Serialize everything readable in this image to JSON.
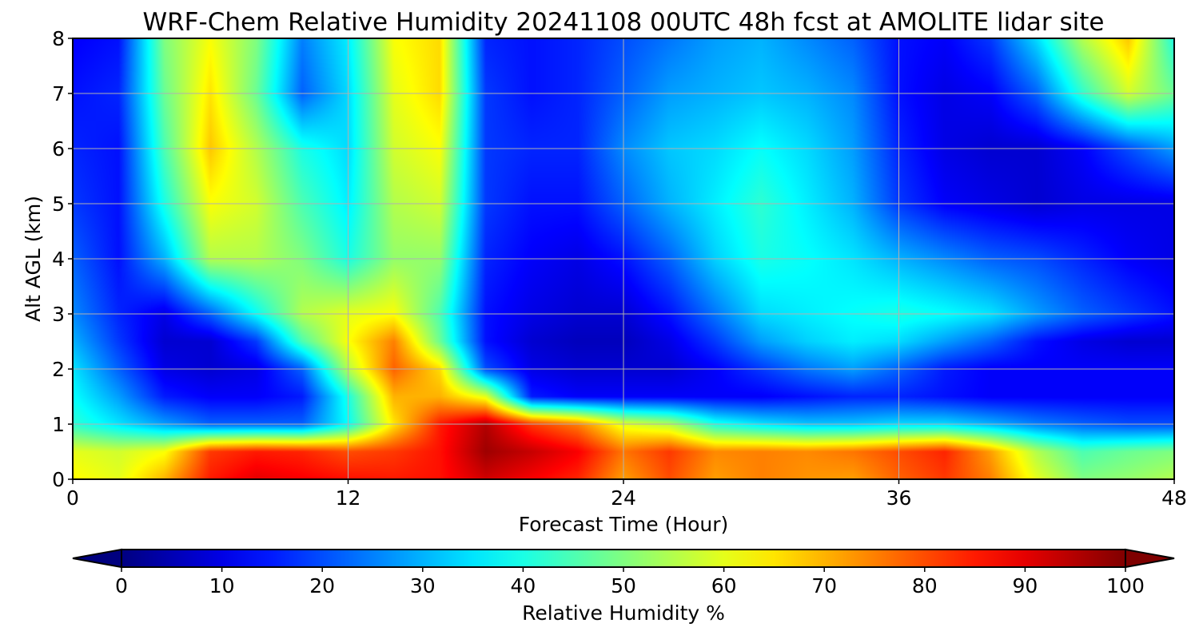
{
  "chart_data": {
    "type": "heatmap",
    "title": "WRF-Chem Relative Humidity 20241108 00UTC 48h fcst at AMOLITE lidar site",
    "xlabel": "Forecast Time (Hour)",
    "ylabel": "Alt AGL (km)",
    "xlim": [
      0,
      48
    ],
    "ylim": [
      0,
      8
    ],
    "x_ticks": [
      "0",
      "12",
      "24",
      "36",
      "48"
    ],
    "y_ticks": [
      "0",
      "1",
      "2",
      "3",
      "4",
      "5",
      "6",
      "7",
      "8"
    ],
    "grid": true,
    "colorbar": {
      "label": "Relative Humidity %",
      "range": [
        0,
        100
      ],
      "ticks": [
        "0",
        "10",
        "20",
        "30",
        "40",
        "50",
        "60",
        "70",
        "80",
        "90",
        "100"
      ],
      "colormap": "jet",
      "extend": "both"
    },
    "x": [
      0,
      2,
      4,
      6,
      8,
      10,
      12,
      14,
      16,
      18,
      20,
      22,
      24,
      26,
      28,
      30,
      32,
      34,
      36,
      38,
      40,
      42,
      44,
      46,
      48
    ],
    "y": [
      0,
      0.5,
      1,
      1.5,
      2,
      2.5,
      3,
      4,
      5,
      6,
      7,
      8
    ],
    "z": [
      [
        63,
        60,
        70,
        85,
        90,
        88,
        86,
        85,
        86,
        92,
        88,
        84,
        72,
        80,
        72,
        75,
        73,
        72,
        78,
        82,
        75,
        60,
        50,
        52,
        55
      ],
      [
        60,
        58,
        62,
        82,
        85,
        84,
        80,
        82,
        86,
        97,
        93,
        88,
        76,
        82,
        74,
        75,
        74,
        76,
        80,
        84,
        72,
        55,
        45,
        48,
        50
      ],
      [
        42,
        35,
        28,
        22,
        22,
        22,
        38,
        65,
        85,
        95,
        82,
        75,
        60,
        55,
        40,
        35,
        32,
        32,
        34,
        34,
        30,
        25,
        22,
        20,
        20
      ],
      [
        38,
        28,
        15,
        12,
        12,
        15,
        40,
        70,
        70,
        60,
        15,
        12,
        12,
        12,
        12,
        12,
        14,
        16,
        16,
        14,
        12,
        12,
        12,
        12,
        12
      ],
      [
        35,
        22,
        10,
        8,
        10,
        22,
        55,
        78,
        66,
        20,
        10,
        8,
        8,
        8,
        12,
        18,
        24,
        28,
        22,
        15,
        12,
        12,
        12,
        12,
        12
      ],
      [
        30,
        18,
        8,
        8,
        18,
        45,
        62,
        75,
        48,
        14,
        8,
        6,
        6,
        10,
        18,
        28,
        33,
        36,
        34,
        28,
        22,
        14,
        10,
        8,
        8
      ],
      [
        26,
        16,
        10,
        22,
        38,
        55,
        60,
        62,
        45,
        14,
        10,
        8,
        8,
        14,
        24,
        34,
        36,
        38,
        40,
        38,
        35,
        28,
        22,
        18,
        14
      ],
      [
        22,
        14,
        30,
        55,
        55,
        50,
        40,
        52,
        52,
        16,
        12,
        10,
        14,
        22,
        33,
        40,
        38,
        35,
        30,
        26,
        22,
        20,
        16,
        12,
        10
      ],
      [
        18,
        14,
        40,
        62,
        58,
        45,
        36,
        55,
        58,
        18,
        14,
        14,
        22,
        30,
        36,
        42,
        36,
        30,
        18,
        12,
        10,
        8,
        10,
        10,
        10
      ],
      [
        16,
        14,
        45,
        68,
        55,
        40,
        34,
        58,
        62,
        18,
        16,
        16,
        26,
        32,
        34,
        38,
        34,
        28,
        16,
        10,
        8,
        8,
        12,
        20,
        28
      ],
      [
        14,
        16,
        48,
        65,
        48,
        22,
        34,
        60,
        66,
        18,
        14,
        16,
        22,
        28,
        30,
        32,
        30,
        26,
        14,
        10,
        12,
        22,
        42,
        58,
        48
      ],
      [
        12,
        14,
        50,
        62,
        50,
        25,
        36,
        62,
        66,
        16,
        14,
        16,
        20,
        24,
        28,
        30,
        26,
        22,
        14,
        12,
        18,
        34,
        55,
        68,
        40
      ]
    ]
  }
}
